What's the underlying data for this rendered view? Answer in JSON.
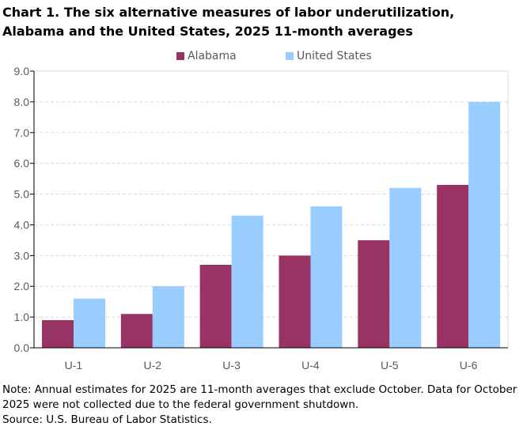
{
  "chart_data": {
    "type": "bar",
    "title": "Chart 1. The six alternative measures of labor underutilization, Alabama and the United States, 2025 11-month averages",
    "categories": [
      "U-1",
      "U-2",
      "U-3",
      "U-4",
      "U-5",
      "U-6"
    ],
    "series": [
      {
        "name": "Alabama",
        "values": [
          0.9,
          1.1,
          2.7,
          3.0,
          3.5,
          5.3
        ],
        "color": "#993366"
      },
      {
        "name": "United States",
        "values": [
          1.6,
          2.0,
          4.3,
          4.6,
          5.2,
          8.0
        ],
        "color": "#99CCFF"
      }
    ],
    "ylim": [
      0,
      9
    ],
    "yticks": [
      "0.0",
      "1.0",
      "2.0",
      "3.0",
      "4.0",
      "5.0",
      "6.0",
      "7.0",
      "8.0",
      "9.0"
    ],
    "grid": true,
    "legend_placement": "top-center",
    "xlabel": "",
    "ylabel": ""
  },
  "footer": {
    "note": "Note: Annual estimates for 2025 are 11-month averages that exclude October. Data for October 2025 were not collected due to the federal government shutdown.",
    "source": "Source: U.S. Bureau of Labor Statistics."
  }
}
